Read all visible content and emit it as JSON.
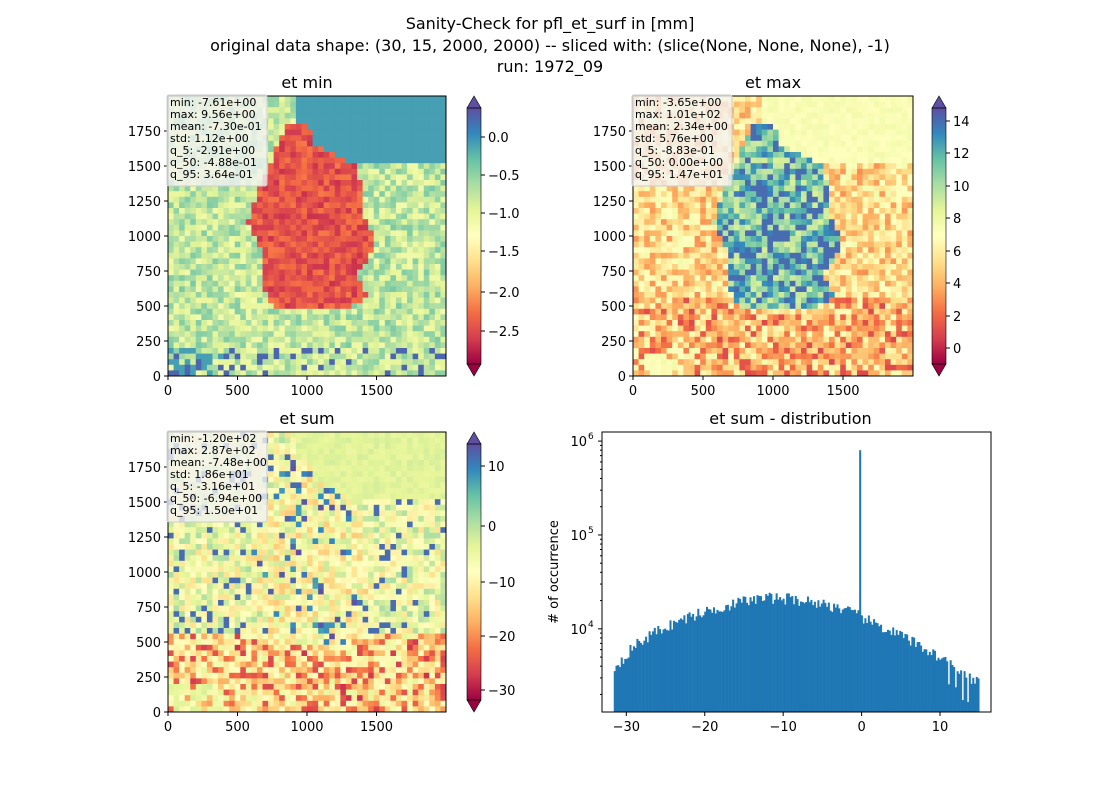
{
  "figure": {
    "title_lines": [
      "Sanity-Check for pfl_et_surf in [mm]",
      "original data shape: (30, 15, 2000, 2000) -- sliced with: (slice(None, None, None), -1)",
      "run: 1972_09"
    ]
  },
  "colors": {
    "histogram_bar": "#1f77b4",
    "spectral_colormap": [
      "#9e0142",
      "#d53e4f",
      "#f46d43",
      "#fdae61",
      "#fee08b",
      "#ffffbf",
      "#e6f598",
      "#abdda4",
      "#66c2a5",
      "#3288bd",
      "#5e4fa2"
    ]
  },
  "chart_data": [
    {
      "type": "heatmap",
      "title": "et min",
      "colormap": "Spectral",
      "x_ticks": [
        "0",
        "500",
        "1000",
        "1500"
      ],
      "y_ticks": [
        "0",
        "250",
        "500",
        "750",
        "1000",
        "1250",
        "1500",
        "1750"
      ],
      "xlim": [
        0,
        2000
      ],
      "ylim": [
        0,
        2000
      ],
      "colorbar": {
        "vmin": -2.91,
        "vmax": 0.364,
        "extend": "both",
        "ticks": [
          "0.0",
          "−0.5",
          "−1.0",
          "−1.5",
          "−2.0",
          "−2.5"
        ]
      },
      "stats": [
        "min: -7.61e+00",
        "max: 9.56e+00",
        "mean: -7.30e-01",
        "std: 1.12e+00",
        "q_5: -2.91e+00",
        "q_50: -4.88e-01",
        "q_95: 3.64e-01"
      ]
    },
    {
      "type": "heatmap",
      "title": "et max",
      "colormap": "Spectral",
      "x_ticks": [
        "0",
        "500",
        "1000",
        "1500"
      ],
      "y_ticks": [
        "0",
        "250",
        "500",
        "750",
        "1000",
        "1250",
        "1500",
        "1750"
      ],
      "xlim": [
        0,
        2000
      ],
      "ylim": [
        0,
        2000
      ],
      "colorbar": {
        "vmin": -0.883,
        "vmax": 14.7,
        "extend": "both",
        "ticks": [
          "0",
          "2",
          "4",
          "6",
          "8",
          "10",
          "12",
          "14"
        ]
      },
      "stats": [
        "min: -3.65e+00",
        "max: 1.01e+02",
        "mean: 2.34e+00",
        "std: 5.76e+00",
        "q_5: -8.83e-01",
        "q_50: 0.00e+00",
        "q_95: 1.47e+01"
      ]
    },
    {
      "type": "heatmap",
      "title": "et sum",
      "colormap": "Spectral",
      "x_ticks": [
        "0",
        "500",
        "1000",
        "1500"
      ],
      "y_ticks": [
        "0",
        "250",
        "500",
        "750",
        "1000",
        "1250",
        "1500",
        "1750"
      ],
      "xlim": [
        0,
        2000
      ],
      "ylim": [
        0,
        2000
      ],
      "colorbar": {
        "vmin": -31.6,
        "vmax": 15.0,
        "extend": "both",
        "ticks": [
          "10",
          "0",
          "−10",
          "−20",
          "−30"
        ]
      },
      "stats": [
        "min: -1.20e+02",
        "max: 2.87e+02",
        "mean: -7.48e+00",
        "std: 1.86e+01",
        "q_5: -3.16e+01",
        "q_50: -6.94e+00",
        "q_95: 1.50e+01"
      ]
    },
    {
      "type": "bar",
      "subtype": "histogram",
      "title": "et sum - distribution",
      "ylabel": "# of occurrence",
      "yscale": "log",
      "xlim": [
        -33.1,
        16.5
      ],
      "ylim": [
        1300,
        1250000
      ],
      "x_ticks": [
        "−30",
        "−20",
        "−10",
        "0",
        "10"
      ],
      "y_ticks": [
        "10",
        "10",
        "10"
      ],
      "y_tick_exponents": [
        "4",
        "5",
        "6"
      ],
      "bins": {
        "start": -31.6,
        "end": 15.0,
        "count": 210
      },
      "envelope": [
        {
          "x": -31.6,
          "y": 3800
        },
        {
          "x": -29.0,
          "y": 6600
        },
        {
          "x": -26.0,
          "y": 9600
        },
        {
          "x": -22.0,
          "y": 13500
        },
        {
          "x": -18.0,
          "y": 17000
        },
        {
          "x": -15.0,
          "y": 19800
        },
        {
          "x": -12.0,
          "y": 21500
        },
        {
          "x": -9.0,
          "y": 21000
        },
        {
          "x": -6.0,
          "y": 19300
        },
        {
          "x": -3.0,
          "y": 17000
        },
        {
          "x": -0.5,
          "y": 14000
        },
        {
          "x": 1.5,
          "y": 11500
        },
        {
          "x": 5.0,
          "y": 8500
        },
        {
          "x": 9.0,
          "y": 5600
        },
        {
          "x": 12.0,
          "y": 3900
        },
        {
          "x": 15.0,
          "y": 2600
        }
      ],
      "spike": {
        "x": -0.2,
        "y": 800000
      }
    }
  ]
}
